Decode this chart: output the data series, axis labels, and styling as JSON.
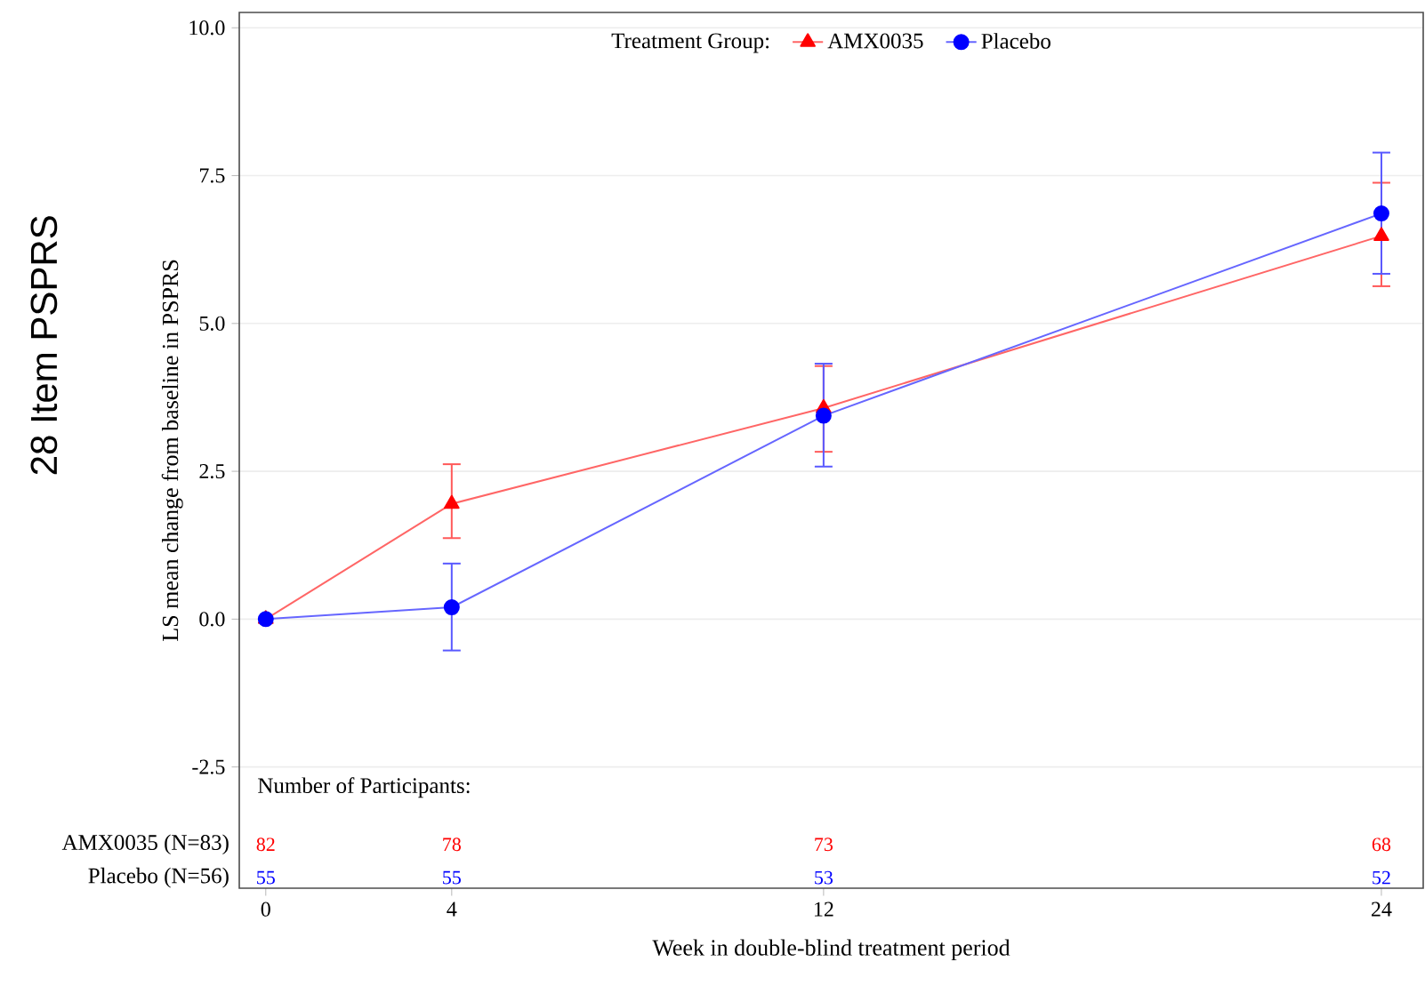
{
  "chart_data": {
    "type": "line",
    "xlabel": "Week in double-blind treatment period",
    "ylabel": "LS mean change from baseline in PSPRS",
    "legend_title": "Treatment Group:",
    "x": [
      0,
      4,
      12,
      24
    ],
    "series": [
      {
        "name": "AMX0035",
        "color": "#ff0000",
        "marker": "triangle",
        "values": [
          0.0,
          1.95,
          3.57,
          6.48
        ],
        "errors": [
          null,
          [
            1.37,
            2.62
          ],
          [
            2.83,
            4.28
          ],
          [
            5.63,
            7.38
          ]
        ]
      },
      {
        "name": "Placebo",
        "color": "#0000ff",
        "marker": "circle",
        "values": [
          0.0,
          0.2,
          3.44,
          6.86
        ],
        "errors": [
          null,
          [
            -0.53,
            0.94
          ],
          [
            2.58,
            4.32
          ],
          [
            5.84,
            7.89
          ]
        ]
      }
    ],
    "xlim": [
      -0.57,
      24.9
    ],
    "ylim": [
      -4.55,
      10.26
    ],
    "xticks": [
      0,
      4,
      12,
      24
    ],
    "yticks": [
      -2.5,
      {
        "value": 0,
        "label": "0.0"
      },
      2.5,
      {
        "value": 5,
        "label": "5.0"
      },
      7.5,
      {
        "value": 10,
        "label": "10.0"
      }
    ],
    "grid": "y",
    "legend": "top",
    "annotations": [
      "28 Item PSPRS",
      "Number of Participants:",
      "AMX0035 (N=83)",
      "82",
      "78",
      "73",
      "68",
      "Placebo (N=56)",
      "55",
      "55",
      "53",
      "52"
    ]
  }
}
